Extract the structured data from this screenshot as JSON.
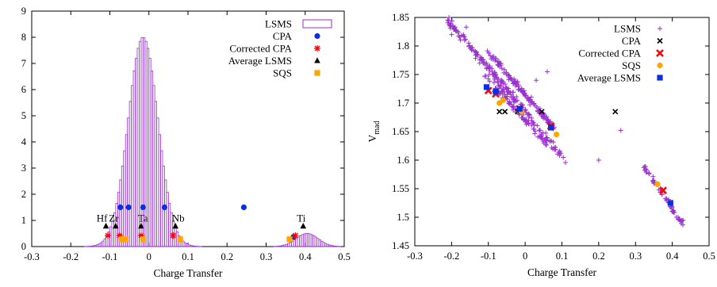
{
  "chart_data": [
    {
      "type": "histogram",
      "xlabel": "Charge Transfer",
      "ylabel": "",
      "xlim": [
        -0.3,
        0.5
      ],
      "ylim": [
        0,
        9
      ],
      "xticks": [
        "-0.3",
        "-0.2",
        "-0.1",
        "0",
        "0.1",
        "0.2",
        "0.3",
        "0.4",
        "0.5"
      ],
      "yticks": [
        "0",
        "1",
        "2",
        "3",
        "4",
        "5",
        "6",
        "7",
        "8",
        "9"
      ],
      "grid": false,
      "legend_position": "top-right",
      "legend": [
        {
          "name": "LSMS",
          "marker": "histogram-box",
          "color": "#9b30d0"
        },
        {
          "name": "CPA",
          "marker": "circle",
          "color": "#0b2fe0"
        },
        {
          "name": "Corrected CPA",
          "marker": "asterisk",
          "color": "#ff0000"
        },
        {
          "name": "Average LSMS",
          "marker": "triangle",
          "color": "#000000"
        },
        {
          "name": "SQS",
          "marker": "square",
          "color": "#ffa500"
        }
      ],
      "histogram": {
        "name": "LSMS",
        "bin_width": 0.005,
        "components": [
          {
            "center": -0.015,
            "peak": 8.0,
            "sigma": 0.038
          },
          {
            "center": 0.405,
            "peak": 0.5,
            "sigma": 0.028
          }
        ]
      },
      "series": [
        {
          "name": "CPA",
          "points": [
            [
              -0.073,
              1.5
            ],
            [
              -0.052,
              1.5
            ],
            [
              -0.015,
              1.5
            ],
            [
              0.04,
              1.5
            ],
            [
              0.243,
              1.5
            ],
            [
              0.37,
              0.37
            ]
          ]
        },
        {
          "name": "Corrected CPA",
          "points": [
            [
              -0.105,
              0.42
            ],
            [
              -0.075,
              0.42
            ],
            [
              -0.02,
              0.42
            ],
            [
              0.062,
              0.42
            ],
            [
              0.375,
              0.42
            ]
          ]
        },
        {
          "name": "Average LSMS",
          "points": [
            [
              -0.11,
              0.78
            ],
            [
              -0.085,
              0.78
            ],
            [
              -0.02,
              0.78
            ],
            [
              0.068,
              0.78
            ],
            [
              0.395,
              0.78
            ]
          ]
        },
        {
          "name": "SQS",
          "points": [
            [
              -0.07,
              0.28
            ],
            [
              -0.06,
              0.28
            ],
            [
              -0.015,
              0.28
            ],
            [
              0.08,
              0.28
            ],
            [
              0.36,
              0.28
            ]
          ]
        }
      ],
      "element_labels": [
        {
          "text": "Hf",
          "x": -0.12,
          "y": 0.95
        },
        {
          "text": "Zr",
          "x": -0.09,
          "y": 0.95
        },
        {
          "text": "Ta",
          "x": -0.015,
          "y": 0.95
        },
        {
          "text": "Nb",
          "x": 0.075,
          "y": 0.95
        },
        {
          "text": "Ti",
          "x": 0.39,
          "y": 0.95
        }
      ]
    },
    {
      "type": "scatter",
      "xlabel": "Charge Transfer",
      "ylabel": "V",
      "ylabel_subscript": "mad",
      "xlim": [
        -0.3,
        0.5
      ],
      "ylim": [
        1.45,
        1.85
      ],
      "xticks": [
        "-0.3",
        "-0.2",
        "-0.1",
        "0",
        "0.1",
        "0.2",
        "0.3",
        "0.4",
        "0.5"
      ],
      "yticks": [
        "1.45",
        "1.5",
        "1.55",
        "1.6",
        "1.65",
        "1.7",
        "1.75",
        "1.8",
        "1.85"
      ],
      "grid": false,
      "legend_position": "top-right",
      "legend": [
        {
          "name": "LSMS",
          "marker": "plus",
          "color": "#9b30d0"
        },
        {
          "name": "CPA",
          "marker": "cross",
          "color": "#000000"
        },
        {
          "name": "Corrected CPA",
          "marker": "bold-cross",
          "color": "#ff0000"
        },
        {
          "name": "SQS",
          "marker": "circle",
          "color": "#ffa500"
        },
        {
          "name": "Average LSMS",
          "marker": "square",
          "color": "#0b2fe0"
        }
      ],
      "lsms_clusters": [
        {
          "from": [
            -0.21,
            1.845
          ],
          "to": [
            0.11,
            1.598
          ],
          "count": 150,
          "spread": 0.005
        },
        {
          "from": [
            -0.18,
            1.82
          ],
          "to": [
            -0.02,
            1.705
          ],
          "count": 45,
          "spread": 0.004
        },
        {
          "from": [
            -0.11,
            1.75
          ],
          "to": [
            0.06,
            1.625
          ],
          "count": 70,
          "spread": 0.004
        },
        {
          "from": [
            -0.1,
            1.79
          ],
          "to": [
            0.08,
            1.655
          ],
          "count": 130,
          "spread": 0.004
        },
        {
          "from": [
            0.325,
            1.588
          ],
          "to": [
            0.43,
            1.487
          ],
          "count": 60,
          "spread": 0.004
        }
      ],
      "lsms_extra_points": [
        [
          -0.16,
          1.833
        ],
        [
          0.06,
          1.755
        ],
        [
          0.03,
          1.74
        ],
        [
          0.26,
          1.652
        ],
        [
          0.2,
          1.6
        ],
        [
          -0.2,
          1.82
        ]
      ],
      "series": [
        {
          "name": "CPA",
          "points": [
            [
              -0.07,
              1.685
            ],
            [
              -0.055,
              1.685
            ],
            [
              -0.02,
              1.685
            ],
            [
              0.045,
              1.685
            ],
            [
              0.245,
              1.685
            ]
          ]
        },
        {
          "name": "Corrected CPA",
          "points": [
            [
              -0.1,
              1.722
            ],
            [
              -0.08,
              1.716
            ],
            [
              -0.015,
              1.69
            ],
            [
              0.07,
              1.66
            ],
            [
              0.375,
              1.547
            ]
          ]
        },
        {
          "name": "SQS",
          "points": [
            [
              -0.07,
              1.7
            ],
            [
              -0.06,
              1.705
            ],
            [
              -0.01,
              1.685
            ],
            [
              0.085,
              1.645
            ],
            [
              0.36,
              1.558
            ]
          ]
        },
        {
          "name": "Average LSMS",
          "points": [
            [
              -0.105,
              1.728
            ],
            [
              -0.08,
              1.72
            ],
            [
              -0.015,
              1.69
            ],
            [
              0.07,
              1.657
            ],
            [
              0.395,
              1.525
            ]
          ]
        }
      ]
    }
  ]
}
